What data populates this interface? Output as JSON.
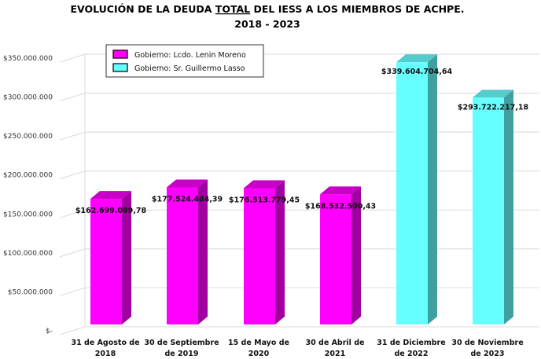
{
  "chart_data": {
    "type": "bar",
    "title_parts": [
      "EVOLUCIÓN DE LA DEUDA ",
      "TOTAL",
      " DEL IESS A LOS MIEMBROS DE ACHPE."
    ],
    "subtitle": "2018 - 2023",
    "categories": [
      [
        "31 de Agosto de",
        "2018"
      ],
      [
        "30 de Septiembre",
        "de 2019"
      ],
      [
        "15 de Mayo de",
        "2020"
      ],
      [
        "30 de Abril de",
        "2021"
      ],
      [
        "31 de Diciembre",
        "de 2022"
      ],
      [
        "30 de Noviembre",
        "de 2023"
      ]
    ],
    "values": [
      162699099.78,
      177524484.39,
      176513779.45,
      168532500.43,
      339604704.64,
      293722217.18
    ],
    "data_labels": [
      "$162.699.099,78",
      "$177.524.484,39",
      "$176.513.779,45",
      "$168.532.500,43",
      "$339.604.704,64",
      "$293.722.217,18"
    ],
    "series_index": [
      0,
      0,
      0,
      0,
      1,
      1
    ],
    "legend": [
      {
        "name": "Gobierno: Lcdo. Lenin Moreno",
        "color": "#ff00ff",
        "side": "#a000a0",
        "top": "#c800c8"
      },
      {
        "name": "Gobierno: Sr. Guillermo Lasso",
        "color": "#66ffff",
        "side": "#40a0a0",
        "top": "#55cccc"
      }
    ],
    "legend_position": "top-left",
    "yticks": [
      0,
      50000000,
      100000000,
      150000000,
      200000000,
      250000000,
      300000000,
      350000000
    ],
    "ytick_labels": [
      "$-",
      "$50.000.000",
      "$100.000.000",
      "$150.000.000",
      "$200.000.000",
      "$250.000.000",
      "$300.000.000",
      "$350.000.000"
    ],
    "ylim": [
      0,
      350000000
    ],
    "grid": true
  }
}
